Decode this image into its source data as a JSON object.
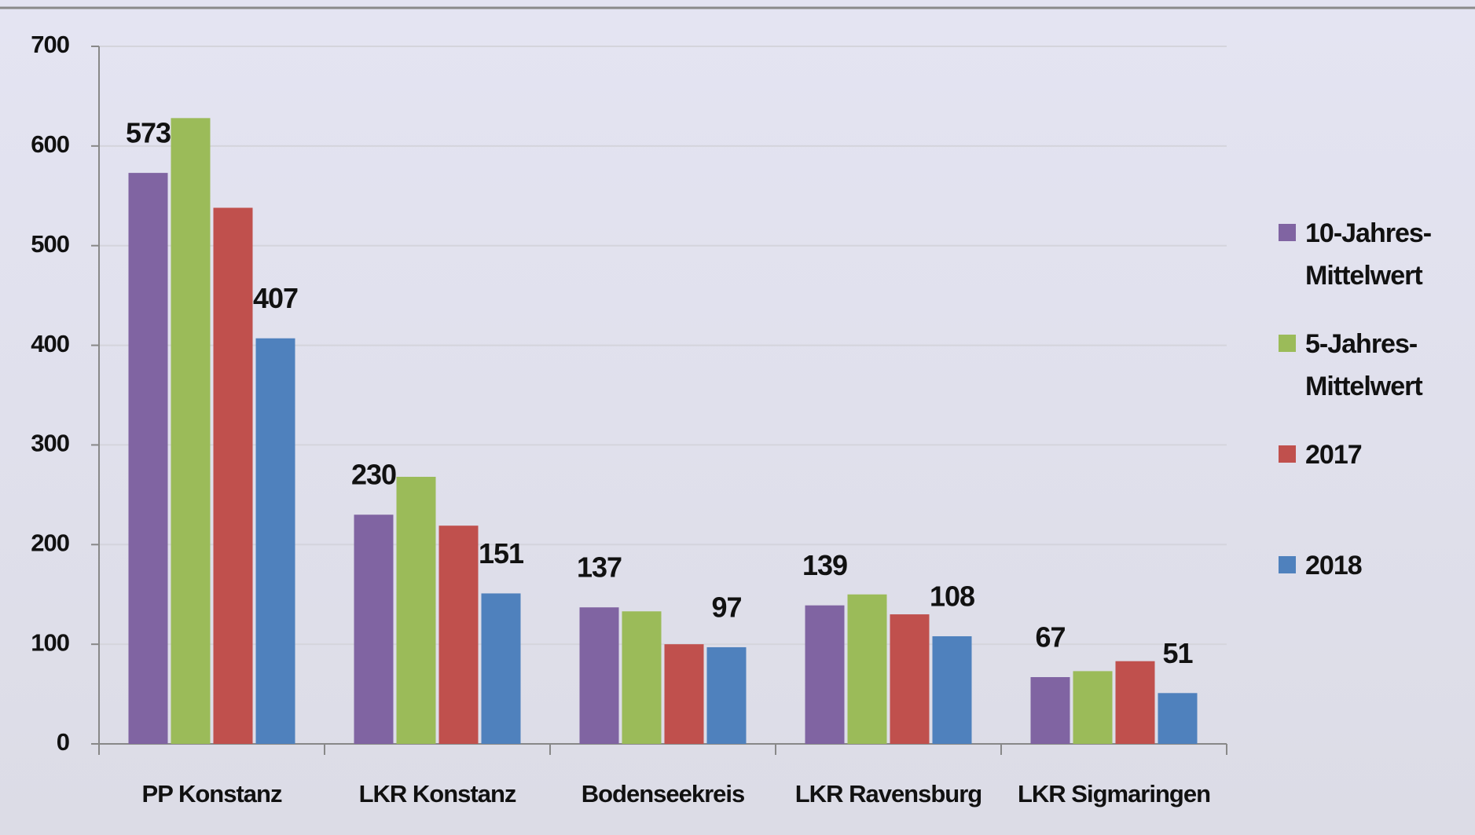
{
  "chart_data": {
    "type": "bar",
    "categories": [
      "PP Konstanz",
      "LKR Konstanz",
      "Bodenseekreis",
      "LKR Ravensburg",
      "LKR Sigmaringen"
    ],
    "series": [
      {
        "name": "10-Jahres-Mittelwert",
        "color": "#8064a2",
        "values": [
          573,
          230,
          137,
          139,
          67
        ],
        "data_labels": true
      },
      {
        "name": "5-Jahres-Mittelwert",
        "color": "#9bbb59",
        "values": [
          628,
          268,
          133,
          150,
          73
        ],
        "data_labels": false
      },
      {
        "name": "2017",
        "color": "#c0504d",
        "values": [
          538,
          219,
          100,
          130,
          83
        ],
        "data_labels": false
      },
      {
        "name": "2018",
        "color": "#4f81bd",
        "values": [
          407,
          151,
          97,
          108,
          51
        ],
        "data_labels": true
      }
    ],
    "ylim": [
      0,
      700
    ],
    "yticks": [
      0,
      100,
      200,
      300,
      400,
      500,
      600,
      700
    ],
    "grid": true,
    "legend": "right"
  }
}
